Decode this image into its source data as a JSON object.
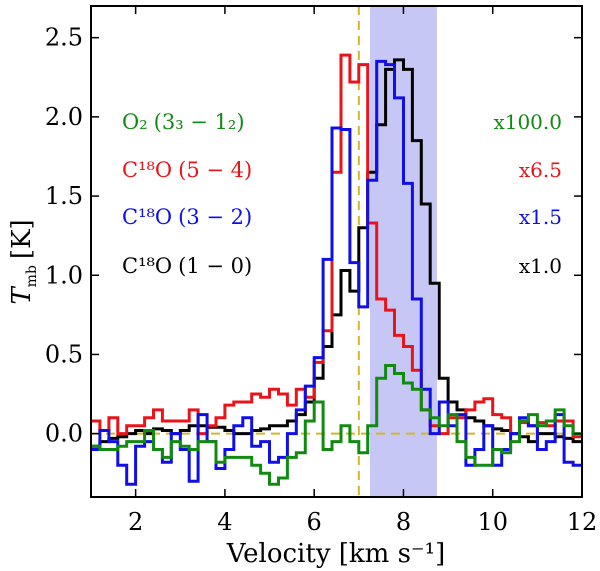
{
  "chart_data": {
    "type": "line",
    "step": true,
    "xlabel": "Velocity [km s⁻¹]",
    "ylabel": "T",
    "ylabel_sub": "mb",
    "ylabel_unit": "[K]",
    "xlim": [
      1,
      12
    ],
    "ylim": [
      -0.4,
      2.7
    ],
    "xticks": [
      2,
      4,
      6,
      8,
      10,
      12
    ],
    "yticks": [
      0.0,
      0.5,
      1.0,
      1.5,
      2.0,
      2.5
    ],
    "xtick_labels": [
      "2",
      "4",
      "6",
      "8",
      "10",
      "12"
    ],
    "ytick_labels": [
      "0.0",
      "0.5",
      "1.0",
      "1.5",
      "2.0",
      "2.5"
    ],
    "vline": {
      "x": 7.0,
      "color": "#d4b52c"
    },
    "hline": {
      "y": 0.0,
      "color": "#d4b52c"
    },
    "shaded_band": {
      "x0": 7.25,
      "x1": 8.75,
      "color": "#c7c7f5"
    },
    "series": [
      {
        "name": "C18O (1-0)",
        "color": "#000000",
        "x": [
          1.0,
          1.2,
          1.4,
          1.6,
          1.8,
          2.0,
          2.2,
          2.4,
          2.6,
          2.8,
          3.0,
          3.2,
          3.4,
          3.6,
          3.8,
          4.0,
          4.2,
          4.4,
          4.6,
          4.8,
          5.0,
          5.2,
          5.4,
          5.6,
          5.8,
          6.0,
          6.2,
          6.4,
          6.6,
          6.8,
          7.0,
          7.2,
          7.4,
          7.6,
          7.8,
          8.0,
          8.2,
          8.4,
          8.6,
          8.8,
          9.0,
          9.2,
          9.4,
          9.6,
          9.8,
          10.0,
          10.2,
          10.4,
          10.6,
          10.8,
          11.0,
          11.2,
          11.4,
          11.6,
          11.8
        ],
        "y": [
          -0.08,
          -0.05,
          -0.03,
          -0.02,
          0.0,
          0.02,
          0.0,
          0.03,
          0.02,
          0.0,
          0.02,
          0.05,
          0.05,
          0.04,
          0.04,
          0.02,
          0.0,
          0.0,
          0.02,
          0.03,
          0.05,
          0.05,
          0.08,
          0.12,
          0.2,
          0.35,
          0.55,
          0.75,
          1.03,
          0.9,
          1.3,
          1.65,
          1.95,
          2.3,
          2.36,
          2.3,
          1.85,
          1.45,
          0.95,
          0.35,
          0.2,
          0.15,
          0.1,
          0.08,
          0.05,
          0.03,
          0.02,
          0.0,
          -0.02,
          -0.05,
          0.0,
          0.0,
          -0.02,
          -0.03,
          -0.05
        ]
      },
      {
        "name": "C18O (5-4)",
        "color": "#e8141a",
        "x": [
          1.0,
          1.2,
          1.4,
          1.6,
          1.8,
          2.0,
          2.2,
          2.4,
          2.6,
          2.8,
          3.0,
          3.2,
          3.4,
          3.6,
          3.8,
          4.0,
          4.2,
          4.4,
          4.6,
          4.8,
          5.0,
          5.2,
          5.4,
          5.6,
          5.8,
          6.0,
          6.2,
          6.4,
          6.6,
          6.8,
          7.0,
          7.2,
          7.4,
          7.6,
          7.8,
          8.0,
          8.2,
          8.4,
          8.6,
          8.8,
          9.0,
          9.2,
          9.4,
          9.6,
          9.8,
          10.0,
          10.2,
          10.4,
          10.6,
          10.8,
          11.0,
          11.2,
          11.4,
          11.6,
          11.8
        ],
        "y": [
          0.08,
          0.02,
          0.1,
          0.0,
          0.05,
          0.05,
          0.1,
          0.15,
          0.08,
          0.08,
          0.08,
          0.15,
          0.0,
          0.05,
          0.1,
          0.18,
          0.2,
          0.2,
          0.25,
          0.23,
          0.28,
          0.25,
          0.18,
          0.28,
          0.23,
          0.45,
          0.65,
          1.65,
          2.39,
          2.22,
          2.33,
          1.33,
          0.85,
          0.78,
          0.62,
          0.55,
          0.4,
          0.15,
          0.05,
          0.0,
          0.1,
          0.1,
          0.15,
          0.2,
          0.22,
          0.12,
          0.1,
          0.0,
          0.07,
          0.05,
          0.07,
          0.05,
          0.08,
          0.08,
          -0.02
        ]
      },
      {
        "name": "C18O (3-2)",
        "color": "#0f0fe6",
        "x": [
          1.0,
          1.2,
          1.4,
          1.6,
          1.8,
          2.0,
          2.2,
          2.4,
          2.6,
          2.8,
          3.0,
          3.2,
          3.4,
          3.6,
          3.8,
          4.0,
          4.2,
          4.4,
          4.6,
          4.8,
          5.0,
          5.2,
          5.4,
          5.6,
          5.8,
          6.0,
          6.2,
          6.4,
          6.6,
          6.8,
          7.0,
          7.2,
          7.4,
          7.6,
          7.8,
          8.0,
          8.2,
          8.4,
          8.6,
          8.8,
          9.0,
          9.2,
          9.4,
          9.6,
          9.8,
          10.0,
          10.2,
          10.4,
          10.6,
          10.8,
          11.0,
          11.2,
          11.4,
          11.6,
          11.8
        ],
        "y": [
          -0.1,
          0.02,
          -0.05,
          -0.2,
          -0.32,
          -0.08,
          -0.05,
          -0.1,
          -0.18,
          0.0,
          -0.1,
          -0.3,
          0.12,
          -0.05,
          -0.22,
          -0.1,
          0.05,
          0.1,
          -0.08,
          -0.05,
          -0.18,
          -0.15,
          0.0,
          0.15,
          0.3,
          0.48,
          1.1,
          1.93,
          1.92,
          1.08,
          0.8,
          1.6,
          2.35,
          2.33,
          2.12,
          1.58,
          0.85,
          0.28,
          0.0,
          0.2,
          0.05,
          0.12,
          -0.2,
          -0.1,
          0.05,
          -0.2,
          -0.1,
          0.0,
          0.1,
          0.05,
          -0.1,
          -0.05,
          0.12,
          -0.18,
          -0.2
        ]
      },
      {
        "name": "O2 (3_3-1_2)",
        "color": "#128a12",
        "x": [
          1.0,
          1.2,
          1.4,
          1.6,
          1.8,
          2.0,
          2.2,
          2.4,
          2.6,
          2.8,
          3.0,
          3.2,
          3.4,
          3.6,
          3.8,
          4.0,
          4.2,
          4.4,
          4.6,
          4.8,
          5.0,
          5.2,
          5.4,
          5.6,
          5.8,
          6.0,
          6.2,
          6.4,
          6.6,
          6.8,
          7.0,
          7.2,
          7.4,
          7.6,
          7.8,
          8.0,
          8.2,
          8.4,
          8.6,
          8.8,
          9.0,
          9.2,
          9.4,
          9.6,
          9.8,
          10.0,
          10.2,
          10.4,
          10.6,
          10.8,
          11.0,
          11.2,
          11.4,
          11.6,
          11.8
        ],
        "y": [
          -0.08,
          -0.1,
          -0.1,
          -0.08,
          -0.05,
          -0.05,
          0.02,
          -0.1,
          -0.15,
          -0.05,
          -0.08,
          -0.1,
          -0.05,
          -0.05,
          -0.18,
          -0.15,
          -0.15,
          -0.15,
          -0.2,
          -0.25,
          -0.32,
          -0.28,
          -0.15,
          -0.12,
          0.08,
          0.2,
          -0.1,
          -0.05,
          0.05,
          -0.05,
          -0.12,
          0.05,
          0.35,
          0.43,
          0.38,
          0.32,
          0.28,
          0.15,
          0.1,
          0.05,
          0.12,
          -0.05,
          -0.15,
          -0.2,
          -0.2,
          -0.1,
          -0.12,
          -0.05,
          0.08,
          0.12,
          0.05,
          0.08,
          0.15,
          0.05,
          0.0
        ]
      }
    ],
    "legend": [
      {
        "label": "O₂",
        "sub": "(3₃ − 1₂)",
        "color": "#128a12",
        "scale": "x100.0"
      },
      {
        "label": "C¹⁸O",
        "sub": "(5 − 4)",
        "color": "#e8141a",
        "scale": "x6.5"
      },
      {
        "label": "C¹⁸O",
        "sub": "(3 − 2)",
        "color": "#0f0fe6",
        "scale": "x1.5"
      },
      {
        "label": "C¹⁸O",
        "sub": "(1 − 0)",
        "color": "#000000",
        "scale": "x1.0"
      }
    ]
  }
}
